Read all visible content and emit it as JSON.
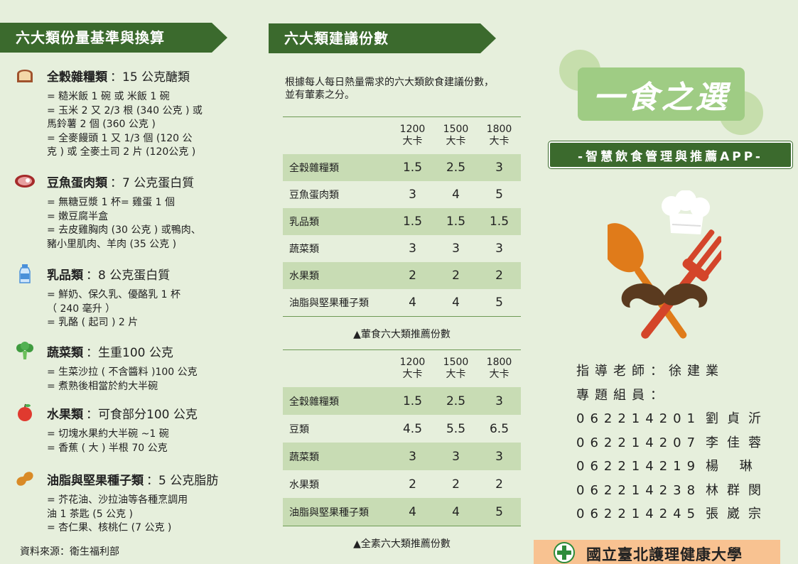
{
  "left": {
    "banner": "六大類份量基準與換算",
    "categories": [
      {
        "icon": "bread-icon",
        "name": "全穀雜糧類",
        "value": "：15 公克醣類",
        "lines": [
          "= 糙米飯 1 碗 或 米飯 1 碗",
          "= 玉米 2 又 2/3 根 (340 公克 ) 或",
          "馬鈴薯 2 個 (360 公克 )",
          "= 全麥饅頭 1 又 1/3 個 (120 公",
          "克 ) 或 全麥土司 2 片 (120公克 )"
        ]
      },
      {
        "icon": "steak-icon",
        "name": "豆魚蛋肉類",
        "value": "：7 公克蛋白質",
        "lines": [
          "= 無糖豆漿 1 杯= 雞蛋 1 個",
          "= 嫩豆腐半盒",
          "= 去皮雞胸肉 (30 公克 ) 或鴨肉、",
          "豬小里肌肉、羊肉 (35 公克 )"
        ]
      },
      {
        "icon": "milk-bottle-icon",
        "name": "乳品類",
        "value": "：8 公克蛋白質",
        "lines": [
          "= 鮮奶、保久乳、優酪乳 1 杯",
          "（ 240 毫升 ）",
          "= 乳酪 ( 起司 ) 2 片"
        ]
      },
      {
        "icon": "broccoli-icon",
        "name": "蔬菜類",
        "value": "：生重100 公克",
        "lines": [
          "= 生菜沙拉 ( 不含醬料 )100 公克",
          "= 煮熟後相當於約大半碗"
        ]
      },
      {
        "icon": "apple-icon",
        "name": "水果類",
        "value": "：可食部分100 公克",
        "lines": [
          "= 切塊水果約大半碗 ~1 碗",
          "= 香蕉 ( 大 ) 半根 70 公克"
        ]
      },
      {
        "icon": "peanut-icon",
        "name": "油脂與堅果種子類",
        "value": "：5 公克脂肪",
        "lines": [
          "= 芥花油、沙拉油等各種烹調用",
          "油 1 茶匙 (5 公克 )",
          "= 杏仁果、核桃仁 (7 公克 )"
        ]
      }
    ],
    "source": "資料來源：衛生福利部"
  },
  "middle": {
    "banner": "六大類建議份數",
    "intro_line1": "根據每人每日熱量需求的六大類飲食建議份數，",
    "intro_line2": "並有葷素之分。",
    "columns": [
      {
        "kcal": "1200",
        "unit": "大卡"
      },
      {
        "kcal": "1500",
        "unit": "大卡"
      },
      {
        "kcal": "1800",
        "unit": "大卡"
      }
    ],
    "table1": {
      "caption": "▲葷食六大類推薦份數",
      "rows": [
        {
          "name": "全穀雜糧類",
          "values": [
            "1.5",
            "2.5",
            "3"
          ]
        },
        {
          "name": "豆魚蛋肉類",
          "values": [
            "3",
            "4",
            "5"
          ]
        },
        {
          "name": "乳品類",
          "values": [
            "1.5",
            "1.5",
            "1.5"
          ]
        },
        {
          "name": "蔬菜類",
          "values": [
            "3",
            "3",
            "3"
          ]
        },
        {
          "name": "水果類",
          "values": [
            "2",
            "2",
            "2"
          ]
        },
        {
          "name": "油脂與堅果種子類",
          "values": [
            "4",
            "4",
            "5"
          ]
        }
      ]
    },
    "table2": {
      "caption": "▲全素六大類推薦份數",
      "rows": [
        {
          "name": "全穀雜糧類",
          "values": [
            "1.5",
            "2.5",
            "3"
          ]
        },
        {
          "name": "豆類",
          "values": [
            "4.5",
            "5.5",
            "6.5"
          ]
        },
        {
          "name": "蔬菜類",
          "values": [
            "3",
            "3",
            "3"
          ]
        },
        {
          "name": "水果類",
          "values": [
            "2",
            "2",
            "2"
          ]
        },
        {
          "name": "油脂與堅果種子類",
          "values": [
            "4",
            "4",
            "5"
          ]
        }
      ]
    }
  },
  "right": {
    "logo": "一食之選",
    "subtitle": "-智慧飲食管理與推薦APP-",
    "advisor": "指導老師：徐建業",
    "members_label": "專題組員：",
    "members": [
      {
        "id": "062214201",
        "name": "劉貞沂"
      },
      {
        "id": "062214207",
        "name": "李佳蓉"
      },
      {
        "id": "062214219",
        "name": "楊 琳"
      },
      {
        "id": "062214238",
        "name": "林群閔"
      },
      {
        "id": "062214245",
        "name": "張崴宗"
      }
    ],
    "university": "國立臺北護理健康大學"
  },
  "colors": {
    "background": "#e6efdc",
    "banner": "#3b6a2d",
    "table_shade": "#c8dcb4",
    "logo_box": "#9fcc84",
    "university_bar": "#f8c291"
  }
}
